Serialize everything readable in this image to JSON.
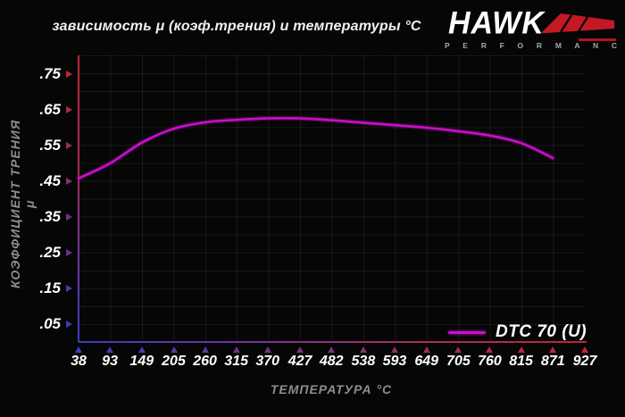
{
  "title": "зависимость μ (коэф.трения) и температуры °C",
  "logo": {
    "brand": "HAWK",
    "subtitle": "P E R F O R M A N C E",
    "wing_color": "#c41824",
    "subtitle_color": "#a6a6a6"
  },
  "colors": {
    "background": "#060606",
    "curve": "#c810c8",
    "axis_red_end": "#c42434",
    "axis_blue_end": "#3c3cc0",
    "tick_text": "#ffffff",
    "axis_title_text": "#8d8d8d",
    "grid_line": "rgba(255,255,255,0.075)"
  },
  "chart_data": {
    "type": "line",
    "title": "зависимость μ (коэф.трения) и температуры °C",
    "xlabel": "ТЕМПЕРАТУРА °C",
    "ylabel": "КОЭФФИЦИЕНТ ТРЕНИЯ μ",
    "x_ticks": [
      38,
      93,
      149,
      205,
      260,
      315,
      370,
      427,
      482,
      538,
      593,
      649,
      705,
      760,
      815,
      871,
      927
    ],
    "y_tick_labels": [
      ".75",
      ".65",
      ".55",
      ".45",
      ".35",
      ".25",
      ".15",
      ".05"
    ],
    "y_tick_values": [
      0.75,
      0.65,
      0.55,
      0.45,
      0.35,
      0.25,
      0.15,
      0.05
    ],
    "xlim": [
      38,
      927
    ],
    "ylim": [
      0,
      0.8025
    ],
    "grid": true,
    "legend_position": "bottom-right",
    "series": [
      {
        "name": "DTC 70 (U)",
        "color": "#c810c8",
        "x": [
          38,
          93,
          149,
          205,
          260,
          315,
          370,
          427,
          482,
          538,
          593,
          649,
          705,
          760,
          815,
          871
        ],
        "y": [
          0.458,
          0.5,
          0.558,
          0.597,
          0.615,
          0.622,
          0.626,
          0.626,
          0.621,
          0.614,
          0.607,
          0.6,
          0.59,
          0.578,
          0.557,
          0.515
        ]
      }
    ]
  }
}
